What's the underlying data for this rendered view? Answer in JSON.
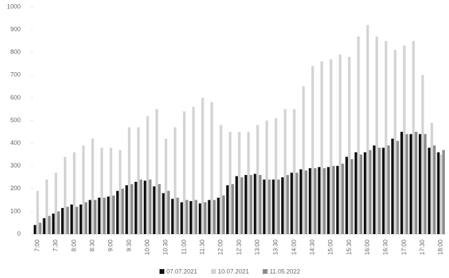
{
  "chart_data": {
    "type": "grouped-bar",
    "categories": [
      "7:00",
      null,
      "7:30",
      null,
      "8:00",
      null,
      "8:30",
      null,
      "9:00",
      null,
      "9:30",
      null,
      "10:00",
      null,
      "10:30",
      null,
      "11:00",
      null,
      "11:30",
      null,
      "12:00",
      null,
      "12:30",
      null,
      "13:00",
      null,
      "13:30",
      null,
      "14:00",
      null,
      "14:30",
      null,
      "15:00",
      null,
      "15:30",
      null,
      "16:00",
      null,
      "16:30",
      null,
      "17:00",
      null,
      "17:30",
      null,
      "18:00"
    ],
    "series": [
      {
        "name": "07.07.2021",
        "color": "#111111",
        "values": [
          40,
          70,
          90,
          115,
          130,
          130,
          150,
          160,
          165,
          190,
          215,
          230,
          235,
          210,
          180,
          155,
          140,
          145,
          135,
          150,
          160,
          215,
          255,
          260,
          265,
          240,
          240,
          250,
          270,
          285,
          290,
          295,
          295,
          300,
          340,
          360,
          360,
          390,
          380,
          420,
          450,
          440,
          440,
          380,
          360
        ]
      },
      {
        "name": "10.07.2021",
        "color": "#d4d4d4",
        "values": [
          190,
          240,
          270,
          340,
          360,
          390,
          420,
          380,
          380,
          370,
          470,
          470,
          520,
          550,
          420,
          470,
          540,
          560,
          600,
          580,
          480,
          450,
          450,
          450,
          480,
          500,
          510,
          550,
          550,
          650,
          740,
          760,
          770,
          790,
          780,
          870,
          920,
          870,
          850,
          810,
          830,
          850,
          700,
          490,
          350
        ]
      },
      {
        "name": "11.05.2022",
        "color": "#8c8c8c",
        "values": [
          50,
          80,
          100,
          120,
          120,
          140,
          150,
          160,
          170,
          200,
          220,
          240,
          240,
          220,
          190,
          160,
          150,
          150,
          140,
          150,
          170,
          220,
          250,
          260,
          260,
          240,
          240,
          260,
          270,
          280,
          290,
          290,
          300,
          310,
          330,
          350,
          370,
          380,
          390,
          410,
          440,
          450,
          440,
          390,
          370
        ]
      }
    ],
    "ylim": [
      0,
      1000
    ],
    "yticks": [
      0,
      100,
      200,
      300,
      400,
      500,
      600,
      700,
      800,
      900,
      1000
    ],
    "grid": false
  }
}
